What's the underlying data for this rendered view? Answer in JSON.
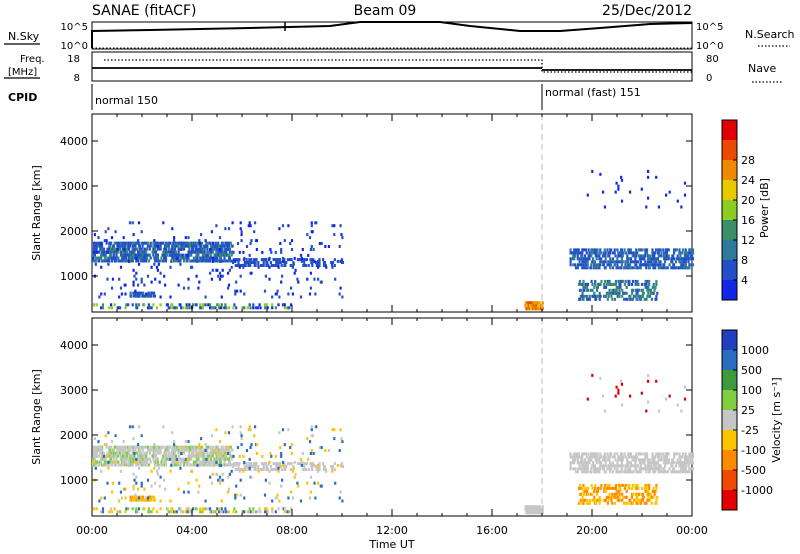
{
  "header": {
    "radar": "SANAE (fitACF)",
    "beam": "Beam 09",
    "date": "25/Dec/2012"
  },
  "top_panels": {
    "nsky_label": "N.Sky",
    "nsky_ticks": [
      "10^5",
      "10^0"
    ],
    "nsearch_label": "N.Search",
    "nsearch_ticks": [
      "10^5",
      "10^0"
    ],
    "freq_label_1": "Freq.",
    "freq_label_2": "[MHz]",
    "freq_ticks": [
      "18",
      "8"
    ],
    "nave_label": "Nave",
    "nave_ticks": [
      "80",
      "0"
    ],
    "cpid_label": "CPID",
    "cpid_segments": [
      {
        "text": "normal 150",
        "start_hour": 0
      },
      {
        "text": "normal (fast) 151",
        "start_hour": 18
      }
    ]
  },
  "chart_data": [
    {
      "type": "heatmap",
      "name": "power",
      "ylabel": "Slant Range [km]",
      "y_ticks": [
        "1000",
        "2000",
        "3000",
        "4000"
      ],
      "ylim": [
        200,
        4600
      ],
      "x_hours": [
        0,
        24
      ],
      "colorbar_title": "Power [dB]",
      "colorbar_ticks": [
        "4",
        "8",
        "12",
        "16",
        "20",
        "24",
        "28"
      ],
      "colors": [
        "#1226e8",
        "#2350c8",
        "#2f7a9a",
        "#3a8f66",
        "#8ccd24",
        "#e8c800",
        "#f08a00",
        "#ec4a00",
        "#e00000"
      ],
      "bands": [
        {
          "h0": 0.0,
          "h1": 5.6,
          "r0": 1300,
          "r1": 1700,
          "density": 0.55,
          "levels": [
            1,
            1,
            1,
            2,
            3
          ]
        },
        {
          "h0": 1.5,
          "h1": 2.5,
          "r0": 520,
          "r1": 650,
          "density": 0.7,
          "levels": [
            1,
            2
          ]
        },
        {
          "h0": 5.6,
          "h1": 10.0,
          "r0": 1200,
          "r1": 1360,
          "density": 0.35,
          "levels": [
            1,
            1
          ]
        },
        {
          "h0": 0.0,
          "h1": 8.0,
          "r0": 260,
          "r1": 380,
          "density": 0.25,
          "levels": [
            0,
            1,
            3,
            4
          ]
        },
        {
          "h0": 0.0,
          "h1": 10.0,
          "r0": 500,
          "r1": 2200,
          "density": 0.03,
          "levels": [
            0,
            1
          ]
        },
        {
          "h0": 17.3,
          "h1": 18.0,
          "r0": 240,
          "r1": 420,
          "density": 0.9,
          "levels": [
            5,
            6,
            7
          ]
        },
        {
          "h0": 19.1,
          "h1": 24.0,
          "r0": 1150,
          "r1": 1600,
          "density": 0.45,
          "levels": [
            1,
            1,
            2
          ]
        },
        {
          "h0": 19.4,
          "h1": 22.6,
          "r0": 450,
          "r1": 850,
          "density": 0.3,
          "levels": [
            1,
            2,
            3
          ]
        },
        {
          "h0": 19.5,
          "h1": 24.0,
          "r0": 2500,
          "r1": 3300,
          "density": 0.02,
          "levels": [
            0
          ]
        }
      ]
    },
    {
      "type": "heatmap",
      "name": "velocity",
      "ylabel": "Slant Range [km]",
      "y_ticks": [
        "1000",
        "2000",
        "3000",
        "4000"
      ],
      "ylim": [
        200,
        4600
      ],
      "x_hours": [
        0,
        24
      ],
      "x_ticks": [
        "00:00",
        "04:00",
        "08:00",
        "12:00",
        "16:00",
        "20:00",
        "00:00"
      ],
      "xlabel": "Time UT",
      "colorbar_title": "Velocity [m s⁻¹]",
      "colorbar_ticks": [
        "1000",
        "500",
        "100",
        "25",
        "-25",
        "-100",
        "-500",
        "-1000"
      ],
      "colors": [
        "#1f3fbf",
        "#2a6cc0",
        "#3d9a3d",
        "#7ed040",
        "#c6c6c6",
        "#ffc400",
        "#ff8a00",
        "#f04a00",
        "#e00000"
      ],
      "bands": [
        {
          "h0": 0.0,
          "h1": 5.6,
          "r0": 1300,
          "r1": 1700,
          "density": 0.55,
          "levels": [
            4,
            4,
            4,
            3
          ]
        },
        {
          "h0": 1.5,
          "h1": 2.5,
          "r0": 520,
          "r1": 650,
          "density": 0.7,
          "levels": [
            5,
            6
          ]
        },
        {
          "h0": 5.6,
          "h1": 10.0,
          "r0": 1200,
          "r1": 1360,
          "density": 0.35,
          "levels": [
            4,
            4
          ]
        },
        {
          "h0": 0.0,
          "h1": 8.0,
          "r0": 260,
          "r1": 380,
          "density": 0.25,
          "levels": [
            4,
            3,
            1,
            5
          ]
        },
        {
          "h0": 0.0,
          "h1": 10.0,
          "r0": 500,
          "r1": 2200,
          "density": 0.03,
          "levels": [
            4,
            5,
            1
          ]
        },
        {
          "h0": 17.3,
          "h1": 18.0,
          "r0": 240,
          "r1": 420,
          "density": 0.9,
          "levels": [
            4
          ]
        },
        {
          "h0": 19.1,
          "h1": 24.0,
          "r0": 1150,
          "r1": 1600,
          "density": 0.45,
          "levels": [
            4
          ]
        },
        {
          "h0": 19.4,
          "h1": 22.6,
          "r0": 450,
          "r1": 850,
          "density": 0.3,
          "levels": [
            5,
            6
          ]
        },
        {
          "h0": 19.5,
          "h1": 24.0,
          "r0": 2500,
          "r1": 3300,
          "density": 0.02,
          "levels": [
            4,
            8
          ]
        }
      ]
    }
  ]
}
